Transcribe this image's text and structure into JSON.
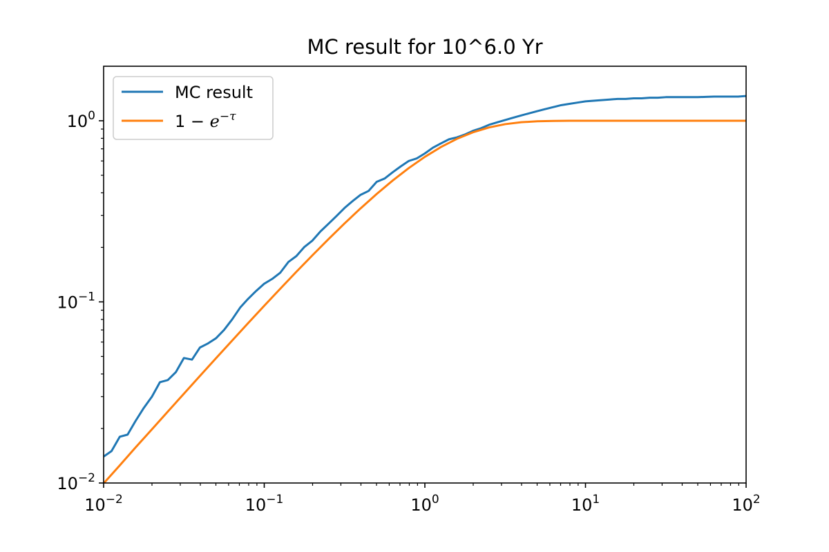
{
  "chart_data": {
    "type": "line",
    "title": "MC result for 10^6.0 Yr",
    "xlabel": "",
    "ylabel": "",
    "xscale": "log",
    "yscale": "log",
    "xlim": [
      0.01,
      100
    ],
    "ylim": [
      0.01,
      2.0
    ],
    "grid": false,
    "legend_position": "top-left",
    "x_ticks": [
      {
        "base": "10",
        "exp": "−2",
        "value": 0.01
      },
      {
        "base": "10",
        "exp": "−1",
        "value": 0.1
      },
      {
        "base": "10",
        "exp": "0",
        "value": 1
      },
      {
        "base": "10",
        "exp": "1",
        "value": 10
      },
      {
        "base": "10",
        "exp": "2",
        "value": 100
      }
    ],
    "y_ticks": [
      {
        "base": "10",
        "exp": "−2",
        "value": 0.01
      },
      {
        "base": "10",
        "exp": "−1",
        "value": 0.1
      },
      {
        "base": "10",
        "exp": "0",
        "value": 1
      }
    ],
    "series": [
      {
        "name": "MC result",
        "color": "#1f77b4",
        "x": [
          0.01,
          0.0112,
          0.0126,
          0.0141,
          0.0158,
          0.0178,
          0.02,
          0.0224,
          0.0251,
          0.0282,
          0.0316,
          0.0355,
          0.0398,
          0.0447,
          0.0501,
          0.0562,
          0.0631,
          0.0708,
          0.0794,
          0.0891,
          0.1,
          0.1122,
          0.1259,
          0.1413,
          0.1585,
          0.1778,
          0.1995,
          0.2239,
          0.2512,
          0.2818,
          0.3162,
          0.3548,
          0.3981,
          0.4467,
          0.5012,
          0.5623,
          0.631,
          0.7079,
          0.7943,
          0.8913,
          1.0,
          1.122,
          1.259,
          1.413,
          1.585,
          1.778,
          1.995,
          2.239,
          2.512,
          2.818,
          3.162,
          3.548,
          3.981,
          4.467,
          5.012,
          5.623,
          6.31,
          7.079,
          7.943,
          8.913,
          10.0,
          11.22,
          12.59,
          14.13,
          15.85,
          17.78,
          19.95,
          22.39,
          25.12,
          28.18,
          31.62,
          35.48,
          39.81,
          44.67,
          50.12,
          56.23,
          63.1,
          70.79,
          79.43,
          89.13,
          100.0
        ],
        "y": [
          0.014,
          0.015,
          0.018,
          0.0185,
          0.022,
          0.026,
          0.03,
          0.036,
          0.037,
          0.041,
          0.049,
          0.048,
          0.056,
          0.059,
          0.063,
          0.07,
          0.08,
          0.093,
          0.104,
          0.115,
          0.126,
          0.134,
          0.145,
          0.166,
          0.179,
          0.201,
          0.218,
          0.245,
          0.27,
          0.298,
          0.33,
          0.36,
          0.39,
          0.41,
          0.46,
          0.48,
          0.52,
          0.56,
          0.6,
          0.62,
          0.66,
          0.71,
          0.75,
          0.79,
          0.81,
          0.84,
          0.88,
          0.91,
          0.95,
          0.98,
          1.01,
          1.04,
          1.07,
          1.1,
          1.13,
          1.16,
          1.19,
          1.22,
          1.24,
          1.26,
          1.28,
          1.29,
          1.3,
          1.31,
          1.32,
          1.32,
          1.33,
          1.33,
          1.34,
          1.34,
          1.35,
          1.35,
          1.35,
          1.35,
          1.35,
          1.355,
          1.36,
          1.36,
          1.36,
          1.36,
          1.37
        ]
      },
      {
        "name": "1 − e^{−τ}",
        "color": "#ff7f0e",
        "x": [
          0.01,
          0.0126,
          0.0158,
          0.02,
          0.0251,
          0.0316,
          0.0398,
          0.0501,
          0.0631,
          0.0794,
          0.1,
          0.1259,
          0.1585,
          0.1995,
          0.2512,
          0.3162,
          0.3981,
          0.5012,
          0.631,
          0.7943,
          1.0,
          1.259,
          1.585,
          1.995,
          2.512,
          3.162,
          3.981,
          5.012,
          6.31,
          7.943,
          10.0,
          15.85,
          25.12,
          39.81,
          63.1,
          100.0
        ],
        "y": [
          0.00995,
          0.01251,
          0.01571,
          0.0198,
          0.02479,
          0.03111,
          0.03902,
          0.04887,
          0.06115,
          0.07636,
          0.09516,
          0.1183,
          0.1466,
          0.1808,
          0.2221,
          0.2711,
          0.3284,
          0.3942,
          0.468,
          0.5481,
          0.6321,
          0.7161,
          0.795,
          0.864,
          0.9189,
          0.9577,
          0.9813,
          0.9933,
          0.9982,
          0.9996,
          0.99995,
          1.0,
          1.0,
          1.0,
          1.0,
          1.0
        ]
      }
    ],
    "legend": {
      "entries": [
        {
          "kind": "text",
          "label": "MC result",
          "color": "#1f77b4"
        },
        {
          "kind": "math",
          "prefix": "1 − ",
          "base": "e",
          "sup": "−τ",
          "color": "#ff7f0e"
        }
      ]
    }
  }
}
